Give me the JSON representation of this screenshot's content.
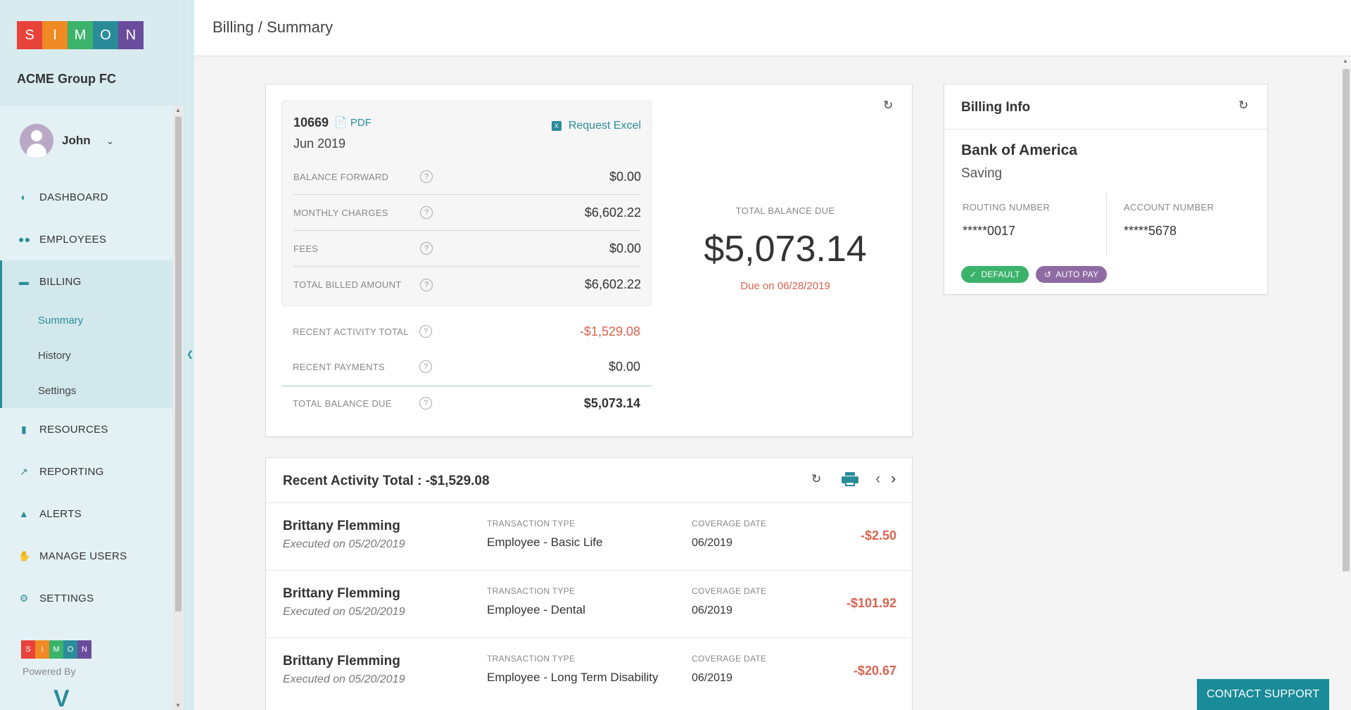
{
  "brand": {
    "letters": [
      "S",
      "I",
      "M",
      "O",
      "N"
    ],
    "colors": [
      "#e8433b",
      "#f08a24",
      "#3bb36b",
      "#2a8c9a",
      "#6a4c9c"
    ],
    "powered_by": "Powered By"
  },
  "sidebar": {
    "org_name": "ACME Group FC",
    "user_name": "John",
    "items": [
      {
        "label": "DASHBOARD",
        "icon": "dashboard-icon"
      },
      {
        "label": "EMPLOYEES",
        "icon": "users-icon"
      },
      {
        "label": "BILLING",
        "icon": "card-icon"
      },
      {
        "label": "RESOURCES",
        "icon": "document-icon"
      },
      {
        "label": "REPORTING",
        "icon": "chart-icon"
      },
      {
        "label": "ALERTS",
        "icon": "bell-icon"
      },
      {
        "label": "MANAGE USERS",
        "icon": "hand-icon"
      },
      {
        "label": "SETTINGS",
        "icon": "gear-icon"
      }
    ],
    "billing_sub": [
      "Summary",
      "History",
      "Settings"
    ]
  },
  "header": {
    "breadcrumb": "Billing / Summary"
  },
  "invoice": {
    "number": "10669",
    "pdf_label": "PDF",
    "period": "Jun 2019",
    "excel_label": "Request Excel",
    "rows": [
      {
        "label": "BALANCE FORWARD",
        "value": "$0.00"
      },
      {
        "label": "MONTHLY CHARGES",
        "value": "$6,602.22"
      },
      {
        "label": "FEES",
        "value": "$0.00"
      },
      {
        "label": "TOTAL BILLED AMOUNT",
        "value": "$6,602.22"
      }
    ],
    "outer_rows": [
      {
        "label": "RECENT ACTIVITY TOTAL",
        "value": "-$1,529.08"
      },
      {
        "label": "RECENT PAYMENTS",
        "value": "$0.00"
      },
      {
        "label": "TOTAL BALANCE DUE",
        "value": "$5,073.14"
      }
    ],
    "total_due_label": "TOTAL BALANCE DUE",
    "total_due_amount": "$5,073.14",
    "due_on": "Due on 06/28/2019"
  },
  "billing_info": {
    "title": "Billing Info",
    "bank": "Bank of America",
    "account_type": "Saving",
    "routing_label": "ROUTING NUMBER",
    "routing_value": "*****0017",
    "account_label": "ACCOUNT NUMBER",
    "account_value": "*****5678",
    "badge_default": "DEFAULT",
    "badge_autopay": "AUTO PAY"
  },
  "activity": {
    "title": "Recent Activity Total : -$1,529.08",
    "type_label": "TRANSACTION TYPE",
    "coverage_label": "COVERAGE DATE",
    "rows": [
      {
        "name": "Brittany Flemming",
        "executed": "Executed on 05/20/2019",
        "type": "Employee - Basic Life",
        "coverage": "06/2019",
        "amount": "-$2.50"
      },
      {
        "name": "Brittany Flemming",
        "executed": "Executed on 05/20/2019",
        "type": "Employee - Dental",
        "coverage": "06/2019",
        "amount": "-$101.92"
      },
      {
        "name": "Brittany Flemming",
        "executed": "Executed on 05/20/2019",
        "type": "Employee - Long Term Disability",
        "coverage": "06/2019",
        "amount": "-$20.67"
      }
    ]
  },
  "support": {
    "label": "CONTACT SUPPORT"
  }
}
